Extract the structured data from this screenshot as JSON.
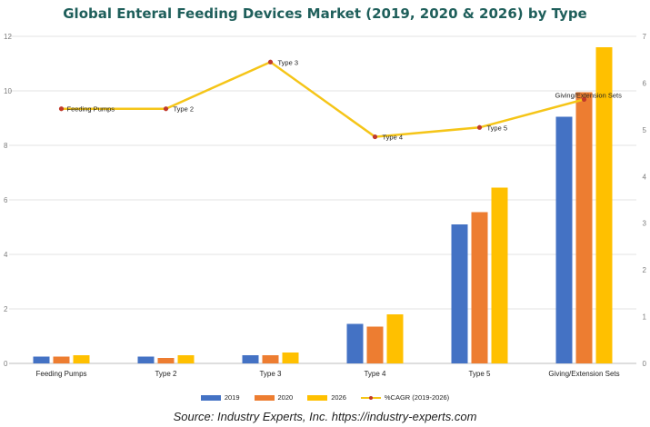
{
  "title": "Global Enteral Feeding Devices Market (2019, 2020 & 2026) by Type",
  "source": "Source: Industry Experts, Inc. https://industry-experts.com",
  "colors": {
    "s2019": "#4472c4",
    "s2020": "#ed7d31",
    "s2026": "#ffc000",
    "cagr": "#f5c518",
    "cagr_marker": "#c0392b",
    "grid": "#e3e3e3"
  },
  "chart_data": {
    "type": "bar",
    "title": "Global Enteral Feeding Devices Market (2019, 2020 & 2026) by Type",
    "categories": [
      "Feeding Pumps",
      "Type 2",
      "Type 3",
      "Type 4",
      "Type 5",
      "Giving/Extension Sets"
    ],
    "series": [
      {
        "name": "2019",
        "values": [
          0.25,
          0.25,
          0.3,
          1.45,
          5.1,
          9.05
        ]
      },
      {
        "name": "2020",
        "values": [
          0.25,
          0.2,
          0.3,
          1.35,
          5.55,
          9.95
        ]
      },
      {
        "name": "2026",
        "values": [
          0.3,
          0.3,
          0.4,
          1.8,
          6.45,
          11.6
        ]
      }
    ],
    "line_series": {
      "name": "%CAGR (2019-2026)",
      "values": [
        5.45,
        5.45,
        6.45,
        4.85,
        5.05,
        5.65
      ],
      "point_labels": [
        "Feeding Pumps",
        "Type 2",
        "Type 3",
        "Type 4",
        "Type 5",
        "Giving/Extension Sets"
      ]
    },
    "ylim": [
      0,
      12
    ],
    "yticks": [
      "0",
      "2",
      "4",
      "6",
      "8",
      "10",
      "12"
    ],
    "y2lim": [
      0,
      7
    ],
    "y2ticks": [
      "0",
      "1",
      "2",
      "3",
      "4",
      "5",
      "6",
      "7"
    ],
    "legend": [
      "2019",
      "2020",
      "2026",
      "%CAGR (2019-2026)"
    ],
    "legend_position": "bottom",
    "grid": true
  }
}
